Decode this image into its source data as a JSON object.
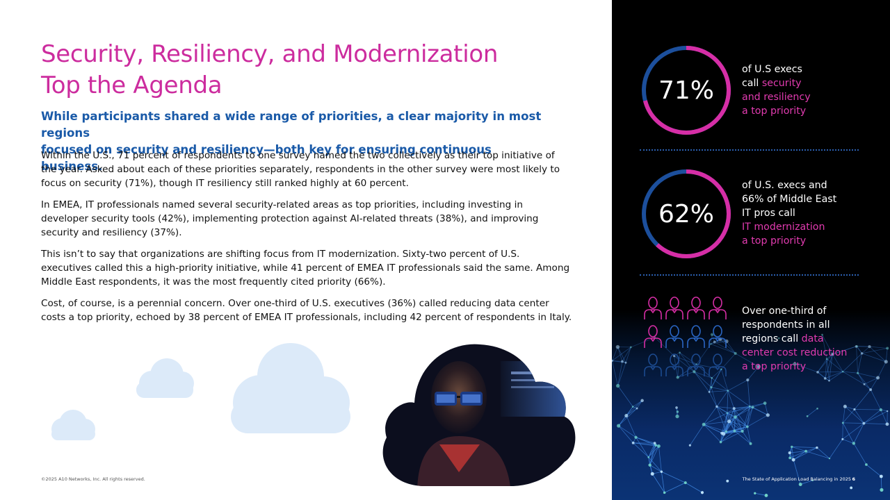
{
  "title": {
    "line1": "Security, Resiliency, and Modernization",
    "line2": "Top the Agenda"
  },
  "subtitle": {
    "line1": "While participants shared a wide range of priorities, a clear majority in most regions",
    "line2": "focused on security and resiliency—both key for ensuring continuous business."
  },
  "body": [
    "Within the U.S., 71 percent of respondents to one survey named the two collectively as their top initiative of the year. Asked about each of these priorities separately, respondents in the other survey were most likely to focus on security (71%), though IT resiliency still ranked highly at 60 percent.",
    "In EMEA, IT professionals named several security-related areas as top priorities, including investing in developer security tools (42%), implementing protection against AI-related threats (38%), and improving security and resiliency (37%).",
    "This isn’t to say that organizations are shifting focus from IT modernization. Sixty-two percent of U.S. executives called this a high-priority initiative, while 41 percent of EMEA IT professionals said the same. Among Middle East respondents, it was the most frequently cited priority (66%).",
    "Cost, of course, is a perennial concern. Over one-third of U.S. executives (36%) called reducing data center costs a top priority, echoed by 38 percent of EMEA IT professionals, including 42 percent of respondents in Italy."
  ],
  "footer": {
    "copyright": "©2025 A10 Networks, Inc. All rights reserved.",
    "doc_title": "The State of Application Load Balancing in 2025",
    "page": "6"
  },
  "stats": [
    {
      "value": "71%",
      "fraction": 0.71,
      "lines": [
        {
          "plain": "of U.S execs",
          "pink": ""
        },
        {
          "plain": "call ",
          "pink": "security"
        },
        {
          "plain": "",
          "pink": "and resiliency"
        },
        {
          "plain": "",
          "pink": "a top priority"
        }
      ]
    },
    {
      "value": "62%",
      "fraction": 0.62,
      "lines": [
        {
          "plain": "of U.S. execs and",
          "pink": ""
        },
        {
          "plain": "66% of Middle East",
          "pink": ""
        },
        {
          "plain": "IT pros call",
          "pink": ""
        },
        {
          "plain": "",
          "pink": "IT modernization"
        },
        {
          "plain": "",
          "pink": "a top priority"
        }
      ]
    },
    {
      "icon_grid": {
        "highlighted": 5,
        "total": 12
      },
      "lines": [
        {
          "plain": "Over one-third of",
          "pink": ""
        },
        {
          "plain": "respondents in all",
          "pink": ""
        },
        {
          "plain": "regions call ",
          "pink": "data"
        },
        {
          "plain": "",
          "pink": "center cost reduction"
        },
        {
          "plain": "",
          "pink": "a top priority"
        }
      ]
    }
  ],
  "colors": {
    "accent_pink": "#cc2c9e",
    "subtitle_blue": "#1a5aa8",
    "ring_blue": "#1c4f9c",
    "cloud": "#dceaf9"
  }
}
